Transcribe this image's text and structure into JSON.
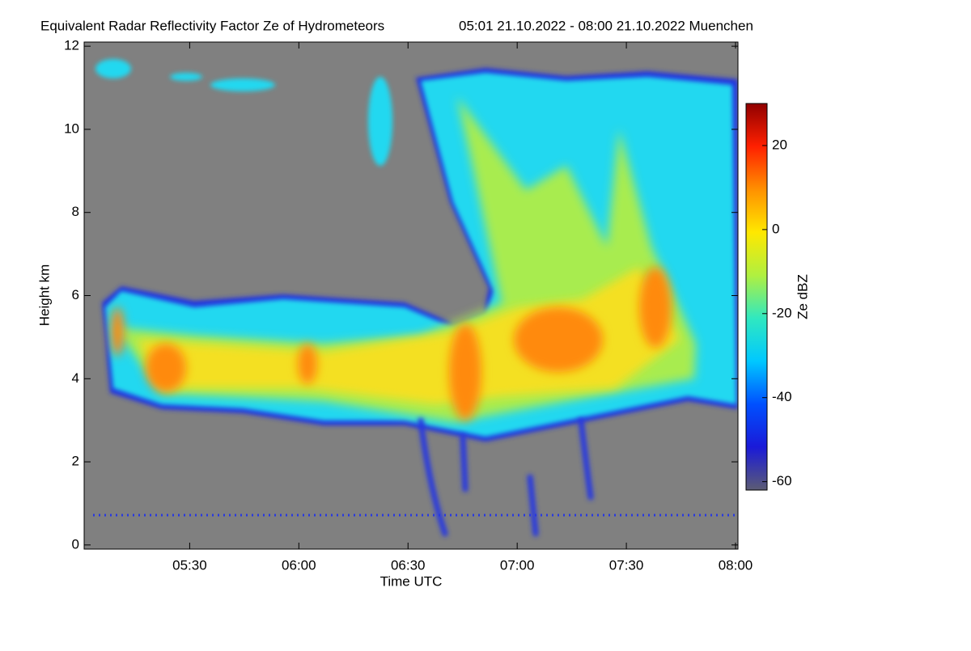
{
  "chart_data": {
    "type": "heatmap",
    "title": "Equivalent Radar Reflectivity Factor Ze of Hydrometeors",
    "subtitle": "05:01 21.10.2022 - 08:00 21.10.2022 Muenchen",
    "x_label": "Time UTC",
    "y_label": "Height km",
    "xlim": [
      "05:01",
      "08:00"
    ],
    "xticks": [
      "05:30",
      "06:00",
      "06:30",
      "07:00",
      "07:30",
      "08:00"
    ],
    "ylim": [
      -0.1,
      12.1
    ],
    "yticks": [
      0,
      2,
      4,
      6,
      8,
      10,
      12
    ],
    "colorbar_label": "Ze dBZ",
    "clim": [
      -62,
      30
    ],
    "cticks": [
      -60,
      -40,
      -20,
      0,
      20
    ],
    "colormap": [
      "#5c5c74",
      "#1a1ad8",
      "#0050ff",
      "#00c8ff",
      "#30e8c0",
      "#b0f040",
      "#ffe800",
      "#ff9000",
      "#ff2000",
      "#900000"
    ],
    "background": "#808080"
  }
}
